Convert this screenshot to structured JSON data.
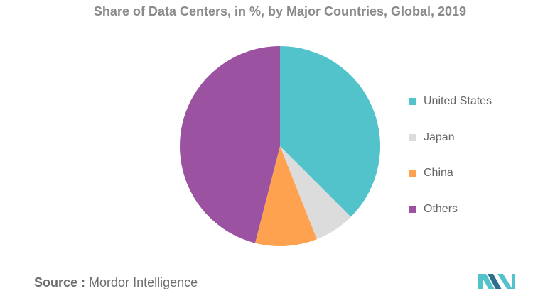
{
  "title": "Share of Data Centers, in %, by Major Countries, Global, 2019",
  "source": {
    "prefix": "Source :",
    "text": "Mordor Intelligence"
  },
  "colors": {
    "united_states": "#52c3cb",
    "japan": "#dcdcdc",
    "china": "#ffa24f",
    "others": "#9b52a0",
    "logo_teal": "#52c3cb",
    "logo_blue": "#2e6f8e"
  },
  "legend": [
    {
      "label": "United States",
      "color": "#52c3cb"
    },
    {
      "label": "Japan",
      "color": "#dcdcdc"
    },
    {
      "label": "China",
      "color": "#ffa24f"
    },
    {
      "label": "Others",
      "color": "#9b52a0"
    }
  ],
  "chart_data": {
    "type": "pie",
    "title": "Share of Data Centers, in %, by Major Countries, Global, 2019",
    "categories": [
      "United States",
      "Japan",
      "China",
      "Others"
    ],
    "values": [
      37.5,
      6.5,
      10,
      46
    ],
    "colors": [
      "#52c3cb",
      "#dcdcdc",
      "#ffa24f",
      "#9b52a0"
    ],
    "start_angle": "top, clockwise",
    "legend_position": "right"
  }
}
